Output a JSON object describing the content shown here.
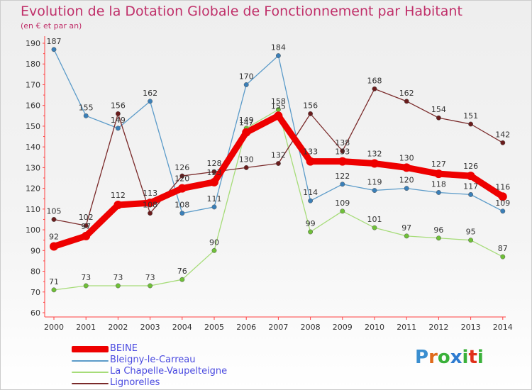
{
  "title": "Evolution de la Dotation Globale de Fonctionnement par Habitant",
  "subtitle": "(en € et par an)",
  "logo": {
    "text": "Proxiti",
    "colors": [
      "#3a8ed0",
      "#e06a1a",
      "#3ab13a",
      "#2e7bd0",
      "#3ab13a",
      "#e0301a",
      "#3ab13a"
    ]
  },
  "chart_data": {
    "type": "line",
    "x": [
      "2000",
      "2001",
      "2002",
      "2003",
      "2004",
      "2005",
      "2006",
      "2007",
      "2008",
      "2009",
      "2010",
      "2011",
      "2012",
      "2013",
      "2014"
    ],
    "ylim": [
      60,
      190
    ],
    "yticks": [
      60,
      70,
      80,
      90,
      100,
      110,
      120,
      130,
      140,
      150,
      160,
      170,
      180,
      190
    ],
    "grid": false,
    "legend_position": "bottom-left",
    "series": [
      {
        "name": "Bleigny-le-Carreau",
        "color": "#5b9bc9",
        "marker": "#3a7fb8",
        "values": [
          187,
          155,
          149,
          162,
          108,
          111,
          170,
          184,
          114,
          122,
          119,
          120,
          118,
          117,
          109
        ]
      },
      {
        "name": "La Chapelle-Vaupelteigne",
        "color": "#a6dc78",
        "marker": "#6fc038",
        "values": [
          71,
          73,
          73,
          73,
          76,
          90,
          149,
          158,
          99,
          109,
          101,
          97,
          96,
          95,
          87
        ]
      },
      {
        "name": "Lignorelles",
        "color": "#7a2a2a",
        "marker": "#6a1c1c",
        "values": [
          105,
          102,
          156,
          108,
          126,
          128,
          130,
          132,
          156,
          138,
          168,
          162,
          154,
          151,
          142
        ]
      },
      {
        "name": "BEINE",
        "color": "#ee0000",
        "marker": "#ee0000",
        "values": [
          92,
          97,
          112,
          113,
          120,
          123,
          147,
          155,
          133,
          133,
          132,
          130,
          127,
          126,
          116
        ]
      }
    ]
  }
}
